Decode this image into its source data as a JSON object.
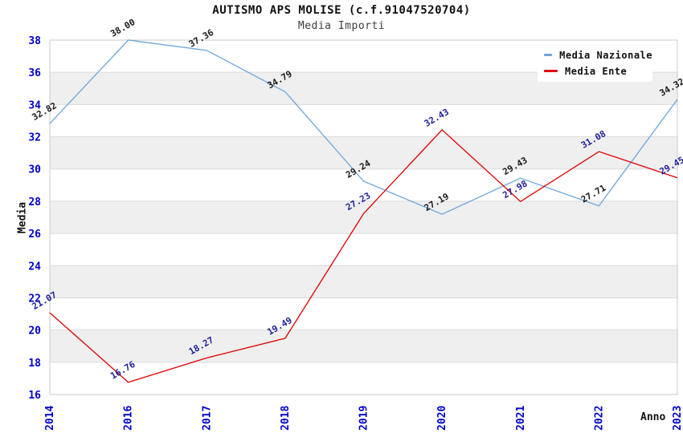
{
  "chart_data": {
    "type": "line",
    "title": "AUTISMO APS MOLISE (c.f.91047520704)",
    "subtitle": "Media Importi",
    "xlabel": "Anno",
    "ylabel": "Media",
    "categories": [
      "2014",
      "2016",
      "2017",
      "2018",
      "2019",
      "2020",
      "2021",
      "2022",
      "2023"
    ],
    "y_ticks": [
      16,
      18,
      20,
      22,
      24,
      26,
      28,
      30,
      32,
      34,
      36,
      38
    ],
    "ylim": [
      16,
      38
    ],
    "grid": "horizontal gridlines with alternating shaded bands",
    "legend_position": "top-right",
    "series": [
      {
        "name": "Media Nazionale",
        "color": "#6BA6DC",
        "label_color": "#1a1a1a",
        "values": [
          32.82,
          38.0,
          37.36,
          34.79,
          29.24,
          27.19,
          29.43,
          27.71,
          34.32
        ]
      },
      {
        "name": "Media Ente",
        "color": "#E00000",
        "label_color": "#1F1F9C",
        "values": [
          21.07,
          16.76,
          18.27,
          19.49,
          27.23,
          32.43,
          27.98,
          31.08,
          29.45
        ]
      }
    ]
  },
  "colors": {
    "tick_label": "#0000cc",
    "band_gray": "#efefef",
    "gridline": "#dcdcdc",
    "plot_border": "#c8c8c8",
    "background": "#ffffff"
  }
}
